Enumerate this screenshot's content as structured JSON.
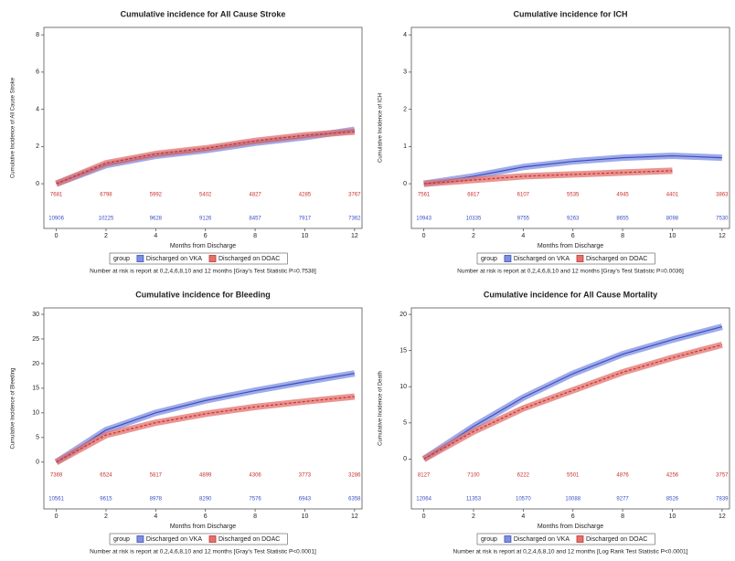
{
  "chart_data": [
    {
      "type": "line",
      "title": "Cumulative incidence for All Cause Stroke",
      "x_label": "Months from Discharge",
      "y_label": "Cumulative Incidence of All Cause Stroke",
      "x": [
        0,
        2,
        4,
        6,
        8,
        10,
        12
      ],
      "xlim": [
        -0.5,
        12.3
      ],
      "xticks": [
        0,
        2,
        4,
        6,
        8,
        10,
        12
      ],
      "ylim": [
        -2.4,
        8.4
      ],
      "yticks": [
        0,
        2,
        4,
        6,
        8
      ],
      "legend_title": "group",
      "series": [
        {
          "name": "Discharged on VKA",
          "color": "#3b4fc4",
          "band_color": "#7f8fe0",
          "values": [
            0,
            1.0,
            1.5,
            1.8,
            2.2,
            2.5,
            2.9
          ],
          "at_risk": [
            10906,
            10225,
            9628,
            9126,
            8457,
            7917,
            7362
          ]
        },
        {
          "name": "Discharged on DOAC",
          "color": "#c9302c",
          "band_color": "#e2726d",
          "values": [
            0,
            1.1,
            1.6,
            1.9,
            2.3,
            2.6,
            2.8
          ],
          "at_risk": [
            7681,
            6798,
            5992,
            5402,
            4827,
            4285,
            3767
          ]
        }
      ],
      "footnote": "Number at risk is report at 0,2,4,6,8,10 and 12 months [Gray's Test Statistic P=0.7538]"
    },
    {
      "type": "line",
      "title": "Cumulative incidence for ICH",
      "x_label": "Months from Discharge",
      "y_label": "Cumulative Incidence of ICH",
      "x": [
        0,
        2,
        4,
        6,
        8,
        10,
        12
      ],
      "xlim": [
        -0.5,
        12.3
      ],
      "xticks": [
        0,
        2,
        4,
        6,
        8,
        10,
        12
      ],
      "ylim": [
        -1.2,
        4.2
      ],
      "yticks": [
        0,
        1,
        2,
        3,
        4
      ],
      "legend_title": "group",
      "series": [
        {
          "name": "Discharged on VKA",
          "color": "#3b4fc4",
          "band_color": "#7f8fe0",
          "values": [
            0,
            0.2,
            0.45,
            0.6,
            0.7,
            0.75,
            0.7
          ],
          "at_risk": [
            10943,
            10335,
            9755,
            9263,
            8655,
            8098,
            7530
          ]
        },
        {
          "name": "Discharged on DOAC",
          "color": "#c9302c",
          "band_color": "#e2726d",
          "values": [
            0,
            0.1,
            0.2,
            0.25,
            0.3,
            0.35,
            null
          ],
          "at_risk": [
            7561,
            6817,
            6107,
            5535,
            4945,
            4401,
            3863
          ]
        }
      ],
      "footnote": "Number at risk is report at 0,2,4,6,8,10 and 12 months [Gray's Test Statistic P=0.0036]"
    },
    {
      "type": "line",
      "title": "Cumulative incidence for Bleeding",
      "x_label": "Months from Discharge",
      "y_label": "Cumulative Incidence of Bleeding",
      "x": [
        0,
        2,
        4,
        6,
        8,
        10,
        12
      ],
      "xlim": [
        -0.5,
        12.3
      ],
      "xticks": [
        0,
        2,
        4,
        6,
        8,
        10,
        12
      ],
      "ylim": [
        -9.5,
        31.3
      ],
      "yticks": [
        0,
        5,
        10,
        15,
        20,
        25,
        30
      ],
      "legend_title": "group",
      "series": [
        {
          "name": "Discharged on VKA",
          "color": "#3b4fc4",
          "band_color": "#7f8fe0",
          "values": [
            0,
            6.5,
            10,
            12.5,
            14.5,
            16.3,
            18
          ],
          "at_risk": [
            10561,
            9615,
            8978,
            8290,
            7576,
            6943,
            6358
          ]
        },
        {
          "name": "Discharged on DOAC",
          "color": "#c9302c",
          "band_color": "#e2726d",
          "values": [
            0,
            5.5,
            8,
            9.8,
            11.2,
            12.3,
            13.3
          ],
          "at_risk": [
            7369,
            6524,
            5817,
            4899,
            4306,
            3773,
            3286
          ]
        }
      ],
      "footnote": "Number at risk is report at 0,2,4,6,8,10 and 12 months [Gray's Test Statistic P<0.0001]"
    },
    {
      "type": "line",
      "title": "Cumulative incidence for All Cause Mortality",
      "x_label": "Months from Discharge",
      "y_label": "Cumulative Incidence of Death",
      "x": [
        0,
        2,
        4,
        6,
        8,
        10,
        12
      ],
      "xlim": [
        -0.5,
        12.3
      ],
      "xticks": [
        0,
        2,
        4,
        6,
        8,
        10,
        12
      ],
      "ylim": [
        -6.9,
        20.9
      ],
      "yticks": [
        0,
        5,
        10,
        15,
        20
      ],
      "legend_title": "group",
      "series": [
        {
          "name": "Discharged on VKA",
          "color": "#3b4fc4",
          "band_color": "#7f8fe0",
          "values": [
            0,
            4.5,
            8.5,
            11.8,
            14.5,
            16.5,
            18.3
          ],
          "at_risk": [
            12064,
            11353,
            10570,
            10088,
            9277,
            8526,
            7839
          ]
        },
        {
          "name": "Discharged on DOAC",
          "color": "#c9302c",
          "band_color": "#e2726d",
          "values": [
            0,
            3.8,
            7,
            9.5,
            12,
            14,
            15.8
          ],
          "at_risk": [
            8127,
            7100,
            6222,
            5501,
            4876,
            4256,
            3757
          ]
        }
      ],
      "footnote": "Number at risk is report at 0,2,4,6,8,10 and 12 months [Log Rank Test Statistic P<0.0001]"
    }
  ]
}
